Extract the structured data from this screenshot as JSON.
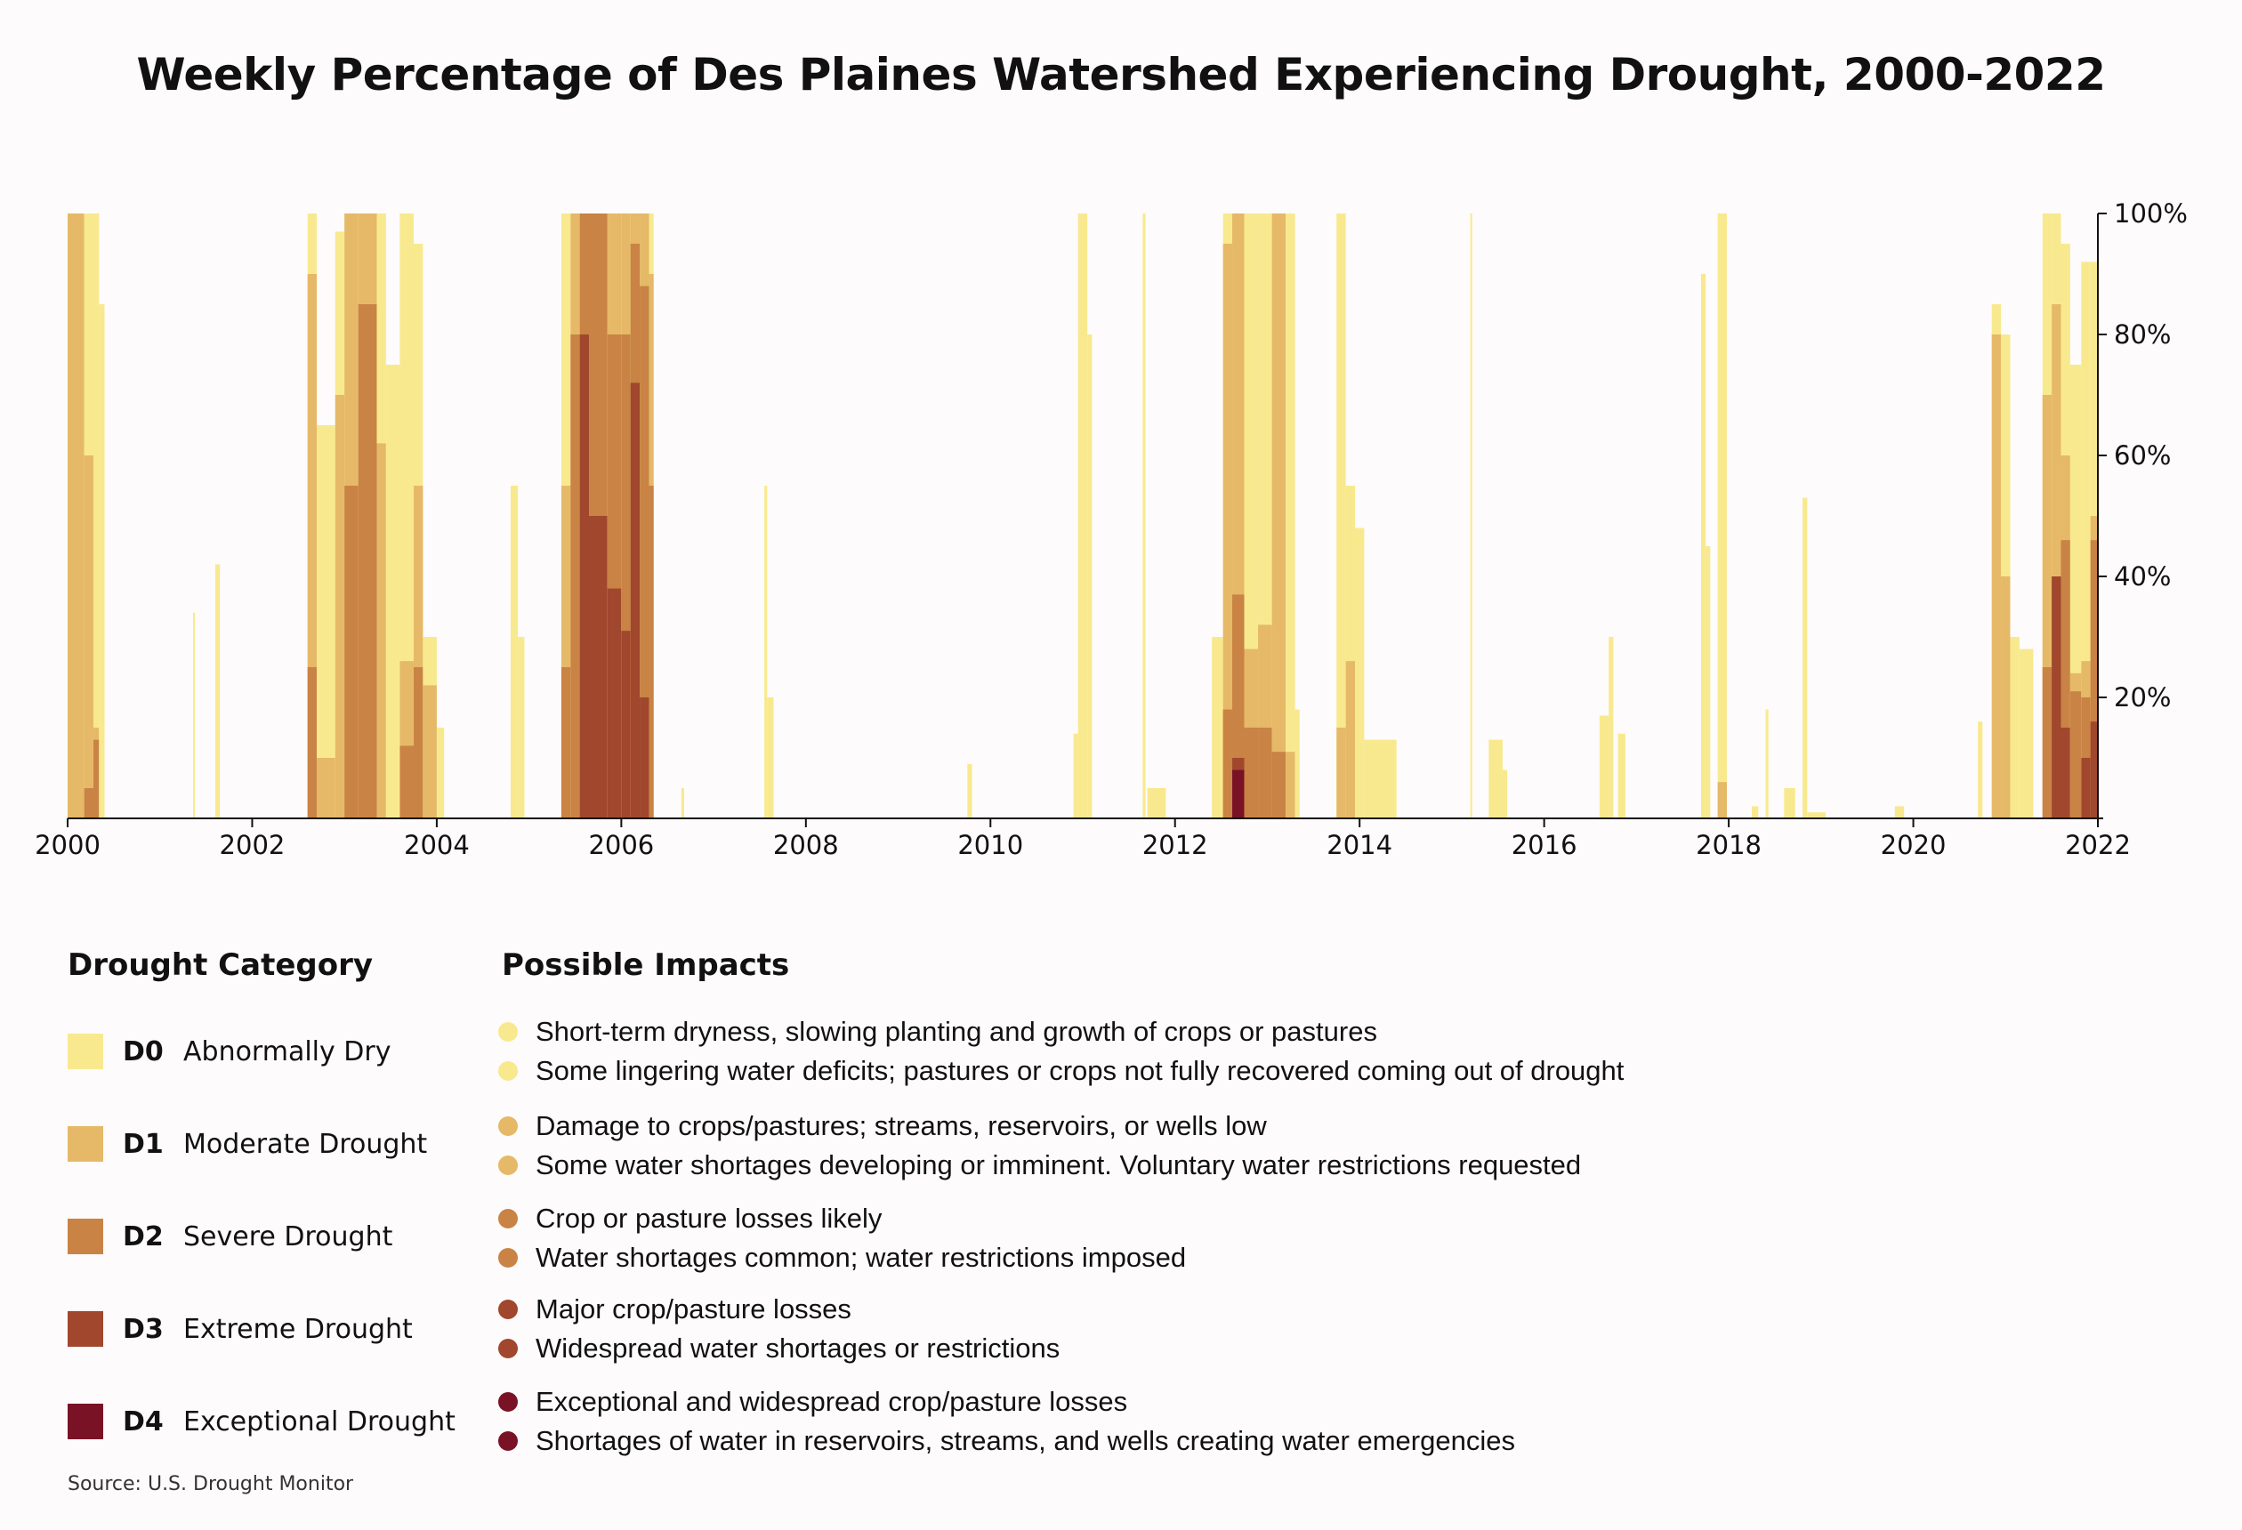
{
  "title": "Weekly Percentage of Des Plaines Watershed Experiencing Drought, 2000-2022",
  "source": "Source: U.S. Drought Monitor",
  "colors": {
    "D0": "#f8e98f",
    "D1": "#e5b968",
    "D2": "#c98345",
    "D3": "#a0472e",
    "D4": "#7a1226"
  },
  "legend": {
    "category_heading": "Drought Category",
    "impacts_heading": "Possible Impacts",
    "categories": [
      {
        "code": "D0",
        "label": "Abnormally Dry",
        "color": "#f8e98f",
        "impacts": [
          "Short-term dryness, slowing planting and growth of crops or pastures",
          "Some lingering water deficits; pastures or crops not fully recovered coming out of drought"
        ]
      },
      {
        "code": "D1",
        "label": "Moderate Drought",
        "color": "#e5b968",
        "impacts": [
          "Damage to crops/pastures; streams, reservoirs, or wells low",
          "Some water shortages developing or imminent. Voluntary water restrictions requested"
        ]
      },
      {
        "code": "D2",
        "label": "Severe Drought",
        "color": "#c98345",
        "impacts": [
          "Crop or pasture losses likely",
          "Water shortages common; water restrictions imposed"
        ]
      },
      {
        "code": "D3",
        "label": "Extreme Drought",
        "color": "#a0472e",
        "impacts": [
          "Major crop/pasture losses",
          "Widespread water shortages or restrictions"
        ]
      },
      {
        "code": "D4",
        "label": "Exceptional Drought",
        "color": "#7a1226",
        "impacts": [
          "Exceptional and widespread crop/pasture losses",
          "Shortages of water in reservoirs, streams, and wells creating water emergencies"
        ]
      }
    ]
  },
  "chart_data": {
    "type": "area",
    "title": "Weekly Percentage of Des Plaines Watershed Experiencing Drought, 2000-2022",
    "xlabel": "",
    "ylabel": "",
    "xlim": [
      2000,
      2022
    ],
    "ylim": [
      0,
      100
    ],
    "x_ticks": [
      "2000",
      "2002",
      "2004",
      "2006",
      "2008",
      "2010",
      "2012",
      "2014",
      "2016",
      "2018",
      "2020",
      "2022"
    ],
    "y_ticks": [
      "20%",
      "40%",
      "60%",
      "80%",
      "100%"
    ],
    "y_axis_side": "right",
    "series_note": "Each episode: start/end in decimal years; D0..D4 = percent of watershed at or above that category",
    "episodes": [
      {
        "start": 2000.0,
        "end": 2000.18,
        "D0": 100,
        "D1": 100,
        "D2": 0,
        "D3": 0,
        "D4": 0
      },
      {
        "start": 2000.18,
        "end": 2000.28,
        "D0": 100,
        "D1": 60,
        "D2": 5,
        "D3": 0,
        "D4": 0
      },
      {
        "start": 2000.28,
        "end": 2000.34,
        "D0": 100,
        "D1": 15,
        "D2": 13,
        "D3": 0,
        "D4": 0
      },
      {
        "start": 2000.34,
        "end": 2000.4,
        "D0": 85,
        "D1": 0,
        "D2": 0,
        "D3": 0,
        "D4": 0
      },
      {
        "start": 2001.36,
        "end": 2001.38,
        "D0": 34,
        "D1": 0,
        "D2": 0,
        "D3": 0,
        "D4": 0
      },
      {
        "start": 2001.6,
        "end": 2001.65,
        "D0": 42,
        "D1": 0,
        "D2": 0,
        "D3": 0,
        "D4": 0
      },
      {
        "start": 2002.6,
        "end": 2002.7,
        "D0": 100,
        "D1": 90,
        "D2": 25,
        "D3": 0,
        "D4": 0
      },
      {
        "start": 2002.7,
        "end": 2002.9,
        "D0": 65,
        "D1": 10,
        "D2": 0,
        "D3": 0,
        "D4": 0
      },
      {
        "start": 2002.9,
        "end": 2003.0,
        "D0": 97,
        "D1": 70,
        "D2": 0,
        "D3": 0,
        "D4": 0
      },
      {
        "start": 2003.0,
        "end": 2003.15,
        "D0": 100,
        "D1": 100,
        "D2": 55,
        "D3": 0,
        "D4": 0
      },
      {
        "start": 2003.15,
        "end": 2003.35,
        "D0": 100,
        "D1": 100,
        "D2": 85,
        "D3": 0,
        "D4": 0
      },
      {
        "start": 2003.35,
        "end": 2003.45,
        "D0": 100,
        "D1": 62,
        "D2": 0,
        "D3": 0,
        "D4": 0
      },
      {
        "start": 2003.45,
        "end": 2003.6,
        "D0": 75,
        "D1": 0,
        "D2": 0,
        "D3": 0,
        "D4": 0
      },
      {
        "start": 2003.6,
        "end": 2003.75,
        "D0": 100,
        "D1": 26,
        "D2": 12,
        "D3": 0,
        "D4": 0
      },
      {
        "start": 2003.75,
        "end": 2003.85,
        "D0": 95,
        "D1": 55,
        "D2": 25,
        "D3": 0,
        "D4": 0
      },
      {
        "start": 2003.85,
        "end": 2004.0,
        "D0": 30,
        "D1": 22,
        "D2": 0,
        "D3": 0,
        "D4": 0
      },
      {
        "start": 2004.0,
        "end": 2004.08,
        "D0": 15,
        "D1": 0,
        "D2": 0,
        "D3": 0,
        "D4": 0
      },
      {
        "start": 2004.8,
        "end": 2004.88,
        "D0": 55,
        "D1": 0,
        "D2": 0,
        "D3": 0,
        "D4": 0
      },
      {
        "start": 2004.88,
        "end": 2004.95,
        "D0": 30,
        "D1": 0,
        "D2": 0,
        "D3": 0,
        "D4": 0
      },
      {
        "start": 2005.35,
        "end": 2005.45,
        "D0": 100,
        "D1": 55,
        "D2": 25,
        "D3": 0,
        "D4": 0
      },
      {
        "start": 2005.45,
        "end": 2005.55,
        "D0": 100,
        "D1": 100,
        "D2": 80,
        "D3": 0,
        "D4": 0
      },
      {
        "start": 2005.55,
        "end": 2005.65,
        "D0": 100,
        "D1": 100,
        "D2": 100,
        "D3": 80,
        "D4": 0
      },
      {
        "start": 2005.65,
        "end": 2005.85,
        "D0": 100,
        "D1": 100,
        "D2": 100,
        "D3": 50,
        "D4": 0
      },
      {
        "start": 2005.85,
        "end": 2006.0,
        "D0": 100,
        "D1": 100,
        "D2": 80,
        "D3": 38,
        "D4": 0
      },
      {
        "start": 2006.0,
        "end": 2006.1,
        "D0": 100,
        "D1": 100,
        "D2": 80,
        "D3": 31,
        "D4": 0
      },
      {
        "start": 2006.1,
        "end": 2006.2,
        "D0": 100,
        "D1": 100,
        "D2": 95,
        "D3": 72,
        "D4": 0
      },
      {
        "start": 2006.2,
        "end": 2006.3,
        "D0": 100,
        "D1": 100,
        "D2": 88,
        "D3": 20,
        "D4": 0
      },
      {
        "start": 2006.3,
        "end": 2006.35,
        "D0": 100,
        "D1": 90,
        "D2": 55,
        "D3": 0,
        "D4": 0
      },
      {
        "start": 2006.65,
        "end": 2006.68,
        "D0": 5,
        "D1": 0,
        "D2": 0,
        "D3": 0,
        "D4": 0
      },
      {
        "start": 2007.55,
        "end": 2007.58,
        "D0": 55,
        "D1": 0,
        "D2": 0,
        "D3": 0,
        "D4": 0
      },
      {
        "start": 2007.58,
        "end": 2007.65,
        "D0": 20,
        "D1": 0,
        "D2": 0,
        "D3": 0,
        "D4": 0
      },
      {
        "start": 2009.75,
        "end": 2009.8,
        "D0": 9,
        "D1": 0,
        "D2": 0,
        "D3": 0,
        "D4": 0
      },
      {
        "start": 2010.9,
        "end": 2010.95,
        "D0": 14,
        "D1": 0,
        "D2": 0,
        "D3": 0,
        "D4": 0
      },
      {
        "start": 2010.95,
        "end": 2011.05,
        "D0": 100,
        "D1": 0,
        "D2": 0,
        "D3": 0,
        "D4": 0
      },
      {
        "start": 2011.05,
        "end": 2011.1,
        "D0": 80,
        "D1": 0,
        "D2": 0,
        "D3": 0,
        "D4": 0
      },
      {
        "start": 2011.65,
        "end": 2011.68,
        "D0": 100,
        "D1": 0,
        "D2": 0,
        "D3": 0,
        "D4": 0
      },
      {
        "start": 2011.7,
        "end": 2011.9,
        "D0": 5,
        "D1": 0,
        "D2": 0,
        "D3": 0,
        "D4": 0
      },
      {
        "start": 2012.4,
        "end": 2012.52,
        "D0": 30,
        "D1": 0,
        "D2": 0,
        "D3": 0,
        "D4": 0
      },
      {
        "start": 2012.52,
        "end": 2012.62,
        "D0": 100,
        "D1": 95,
        "D2": 18,
        "D3": 0,
        "D4": 0
      },
      {
        "start": 2012.62,
        "end": 2012.75,
        "D0": 100,
        "D1": 100,
        "D2": 37,
        "D3": 10,
        "D4": 8
      },
      {
        "start": 2012.75,
        "end": 2012.9,
        "D0": 100,
        "D1": 28,
        "D2": 15,
        "D3": 0,
        "D4": 0
      },
      {
        "start": 2012.9,
        "end": 2013.05,
        "D0": 100,
        "D1": 32,
        "D2": 15,
        "D3": 0,
        "D4": 0
      },
      {
        "start": 2013.05,
        "end": 2013.2,
        "D0": 100,
        "D1": 100,
        "D2": 11,
        "D3": 0,
        "D4": 0
      },
      {
        "start": 2013.2,
        "end": 2013.3,
        "D0": 100,
        "D1": 11,
        "D2": 0,
        "D3": 0,
        "D4": 0
      },
      {
        "start": 2013.3,
        "end": 2013.35,
        "D0": 18,
        "D1": 0,
        "D2": 0,
        "D3": 0,
        "D4": 0
      },
      {
        "start": 2013.75,
        "end": 2013.85,
        "D0": 100,
        "D1": 15,
        "D2": 0,
        "D3": 0,
        "D4": 0
      },
      {
        "start": 2013.85,
        "end": 2013.95,
        "D0": 55,
        "D1": 26,
        "D2": 0,
        "D3": 0,
        "D4": 0
      },
      {
        "start": 2013.95,
        "end": 2014.05,
        "D0": 48,
        "D1": 0,
        "D2": 0,
        "D3": 0,
        "D4": 0
      },
      {
        "start": 2014.05,
        "end": 2014.4,
        "D0": 13,
        "D1": 0,
        "D2": 0,
        "D3": 0,
        "D4": 0
      },
      {
        "start": 2015.2,
        "end": 2015.22,
        "D0": 100,
        "D1": 0,
        "D2": 0,
        "D3": 0,
        "D4": 0
      },
      {
        "start": 2015.4,
        "end": 2015.55,
        "D0": 13,
        "D1": 0,
        "D2": 0,
        "D3": 0,
        "D4": 0
      },
      {
        "start": 2015.55,
        "end": 2015.6,
        "D0": 8,
        "D1": 0,
        "D2": 0,
        "D3": 0,
        "D4": 0
      },
      {
        "start": 2016.6,
        "end": 2016.7,
        "D0": 17,
        "D1": 0,
        "D2": 0,
        "D3": 0,
        "D4": 0
      },
      {
        "start": 2016.7,
        "end": 2016.75,
        "D0": 30,
        "D1": 0,
        "D2": 0,
        "D3": 0,
        "D4": 0
      },
      {
        "start": 2016.8,
        "end": 2016.88,
        "D0": 14,
        "D1": 0,
        "D2": 0,
        "D3": 0,
        "D4": 0
      },
      {
        "start": 2017.7,
        "end": 2017.75,
        "D0": 90,
        "D1": 0,
        "D2": 0,
        "D3": 0,
        "D4": 0
      },
      {
        "start": 2017.75,
        "end": 2017.8,
        "D0": 45,
        "D1": 0,
        "D2": 0,
        "D3": 0,
        "D4": 0
      },
      {
        "start": 2017.88,
        "end": 2017.98,
        "D0": 100,
        "D1": 6,
        "D2": 0,
        "D3": 0,
        "D4": 0
      },
      {
        "start": 2018.25,
        "end": 2018.32,
        "D0": 2,
        "D1": 0,
        "D2": 0,
        "D3": 0,
        "D4": 0
      },
      {
        "start": 2018.4,
        "end": 2018.43,
        "D0": 18,
        "D1": 0,
        "D2": 0,
        "D3": 0,
        "D4": 0
      },
      {
        "start": 2018.6,
        "end": 2018.72,
        "D0": 5,
        "D1": 0,
        "D2": 0,
        "D3": 0,
        "D4": 0
      },
      {
        "start": 2018.8,
        "end": 2018.85,
        "D0": 53,
        "D1": 0,
        "D2": 0,
        "D3": 0,
        "D4": 0
      },
      {
        "start": 2018.85,
        "end": 2019.05,
        "D0": 1,
        "D1": 0,
        "D2": 0,
        "D3": 0,
        "D4": 0
      },
      {
        "start": 2019.8,
        "end": 2019.9,
        "D0": 2,
        "D1": 0,
        "D2": 0,
        "D3": 0,
        "D4": 0
      },
      {
        "start": 2020.7,
        "end": 2020.75,
        "D0": 16,
        "D1": 0,
        "D2": 0,
        "D3": 0,
        "D4": 0
      },
      {
        "start": 2020.85,
        "end": 2020.95,
        "D0": 85,
        "D1": 80,
        "D2": 0,
        "D3": 0,
        "D4": 0
      },
      {
        "start": 2020.95,
        "end": 2021.05,
        "D0": 80,
        "D1": 40,
        "D2": 0,
        "D3": 0,
        "D4": 0
      },
      {
        "start": 2021.05,
        "end": 2021.15,
        "D0": 30,
        "D1": 0,
        "D2": 0,
        "D3": 0,
        "D4": 0
      },
      {
        "start": 2021.15,
        "end": 2021.3,
        "D0": 28,
        "D1": 0,
        "D2": 0,
        "D3": 0,
        "D4": 0
      },
      {
        "start": 2021.4,
        "end": 2021.5,
        "D0": 100,
        "D1": 70,
        "D2": 25,
        "D3": 0,
        "D4": 0
      },
      {
        "start": 2021.5,
        "end": 2021.6,
        "D0": 100,
        "D1": 85,
        "D2": 40,
        "D3": 40,
        "D4": 0
      },
      {
        "start": 2021.6,
        "end": 2021.7,
        "D0": 95,
        "D1": 60,
        "D2": 46,
        "D3": 15,
        "D4": 0
      },
      {
        "start": 2021.7,
        "end": 2021.82,
        "D0": 75,
        "D1": 24,
        "D2": 21,
        "D3": 0,
        "D4": 0
      },
      {
        "start": 2021.82,
        "end": 2021.92,
        "D0": 92,
        "D1": 26,
        "D2": 20,
        "D3": 10,
        "D4": 0
      },
      {
        "start": 2021.92,
        "end": 2022.0,
        "D0": 92,
        "D1": 50,
        "D2": 46,
        "D3": 16,
        "D4": 0
      }
    ]
  }
}
